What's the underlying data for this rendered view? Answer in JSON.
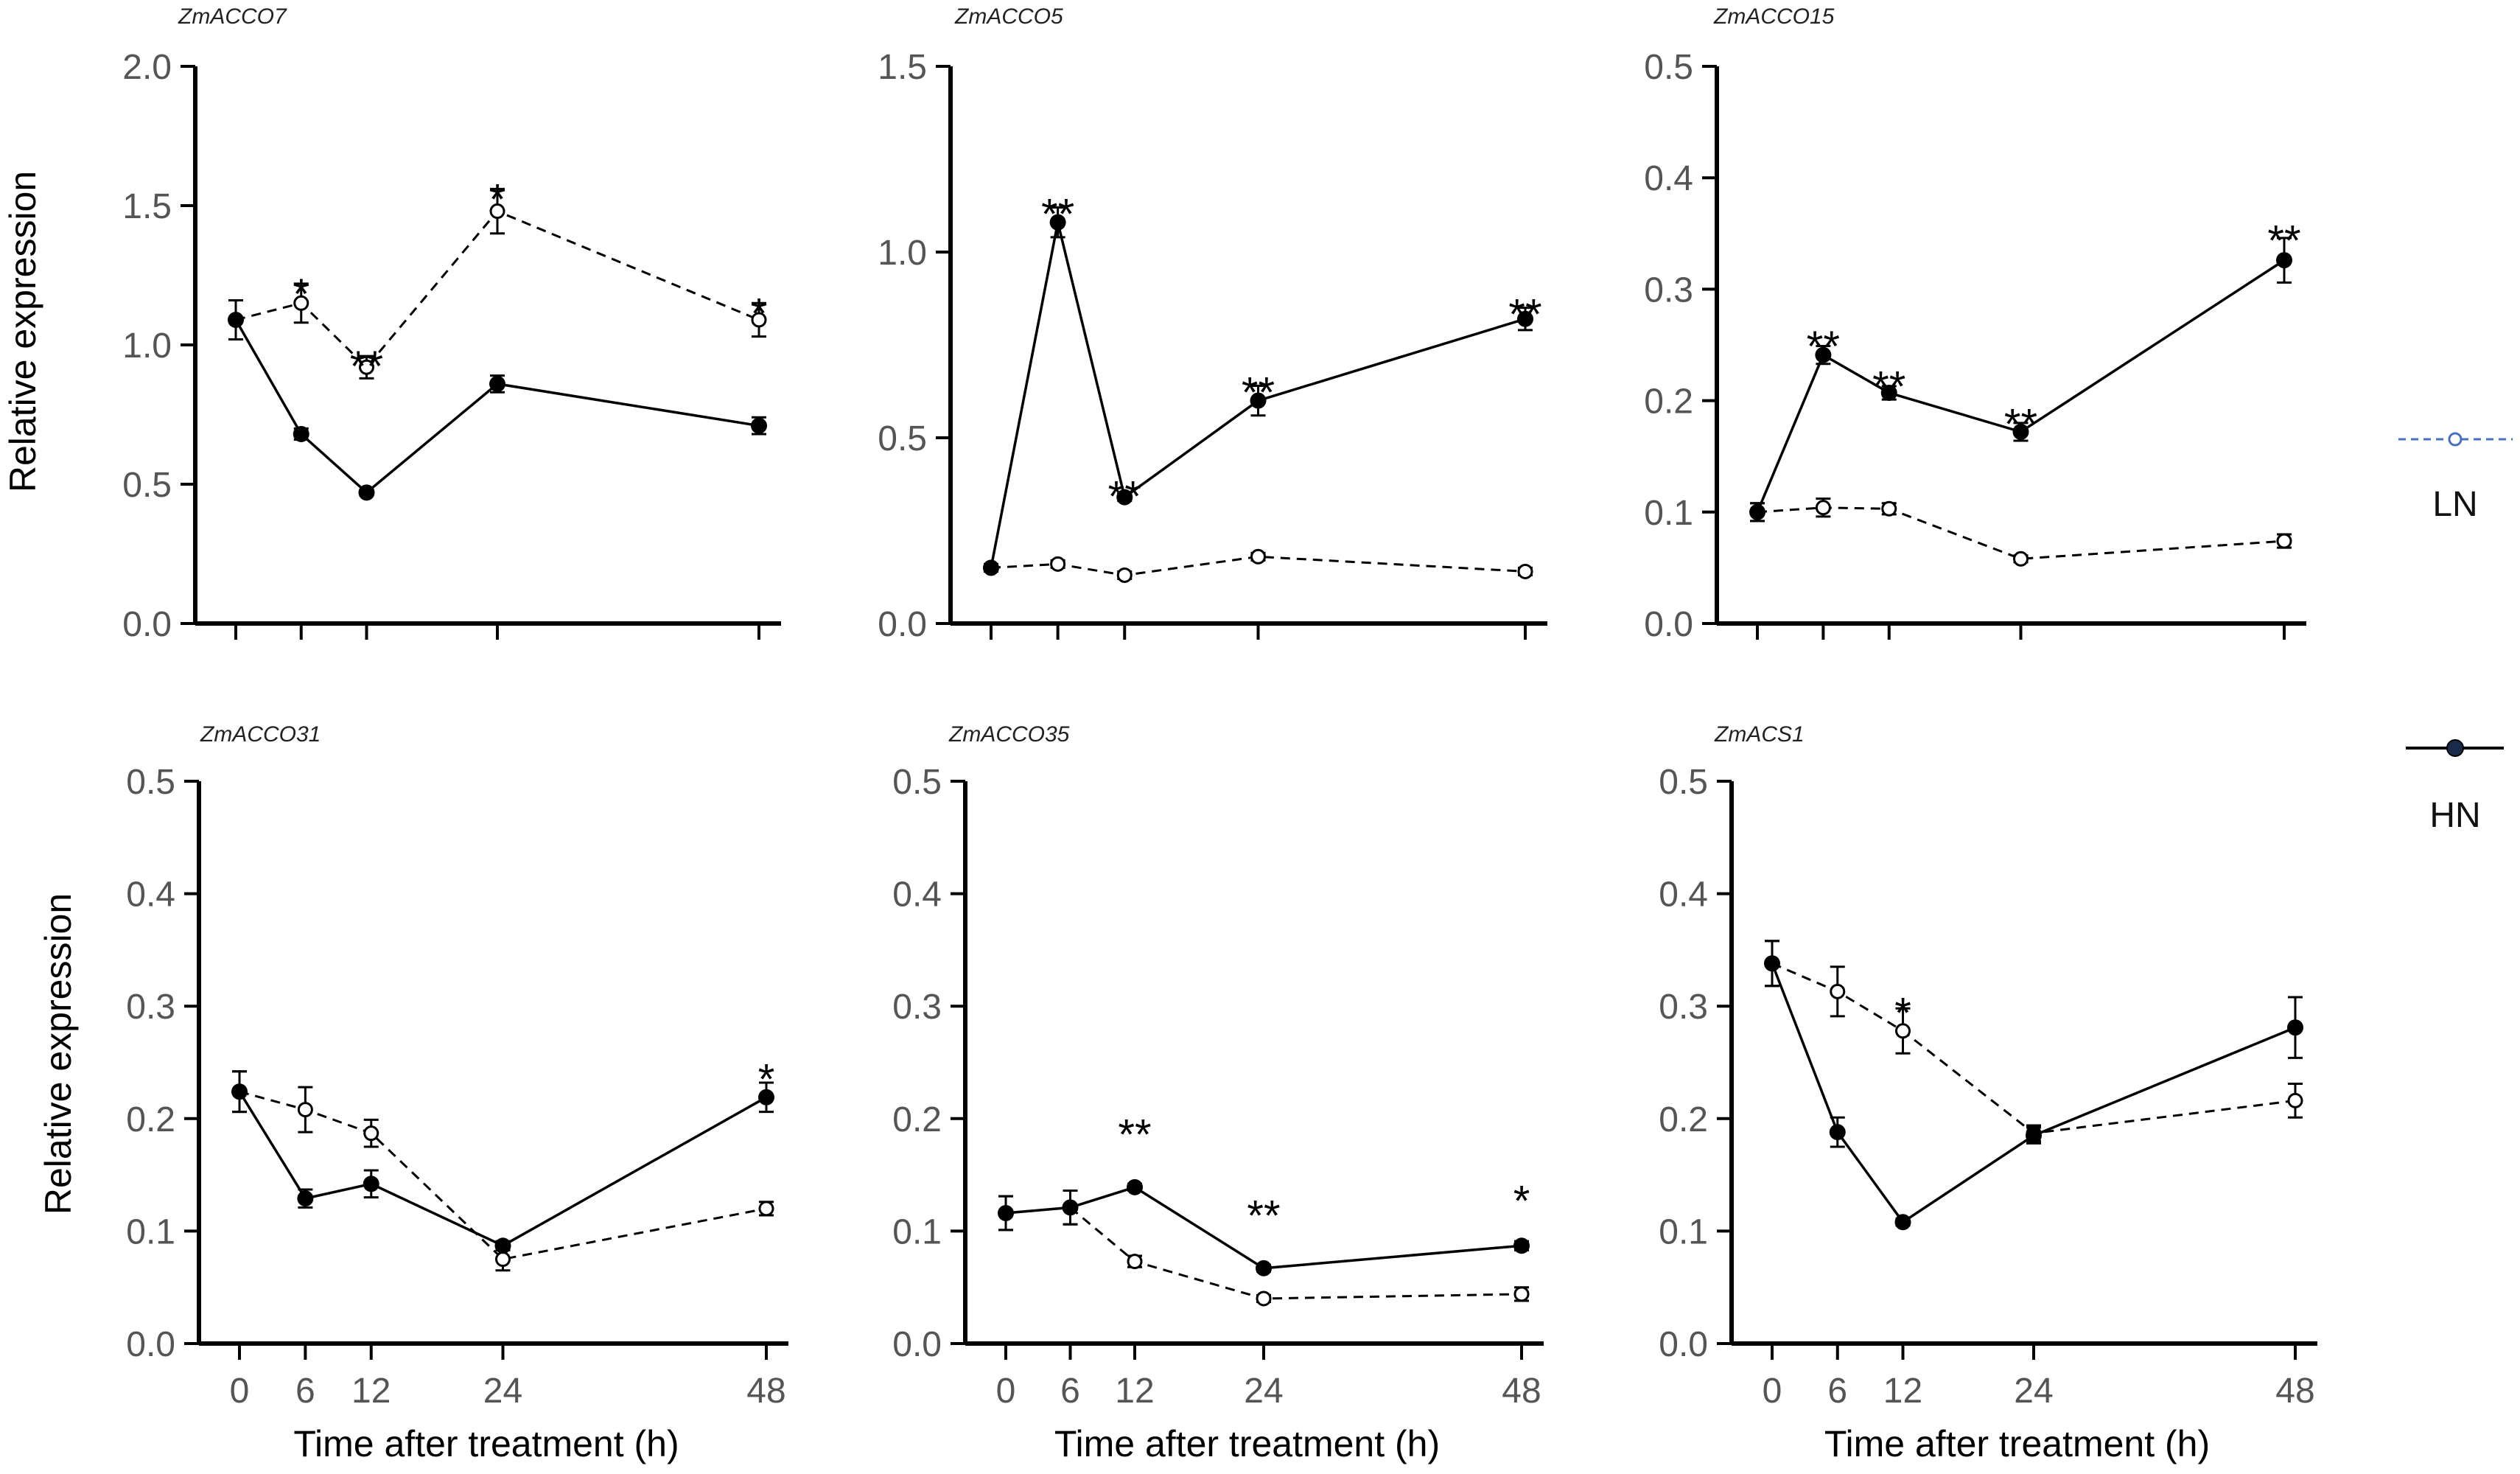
{
  "chart_data": [
    {
      "type": "line",
      "title": "ZmACCO7",
      "ylabel": "Relative  expression",
      "xlabel": "",
      "x": [
        0,
        6,
        12,
        24,
        48
      ],
      "xticks": [],
      "ylim": [
        0,
        2.0
      ],
      "yticks": [
        "0.0",
        "0.5",
        "1.0",
        "1.5",
        "2.0"
      ],
      "series": [
        {
          "name": "LN",
          "style": "dashed-open",
          "values": [
            1.09,
            1.15,
            0.92,
            1.48,
            1.09
          ],
          "errors": [
            0.07,
            0.07,
            0.04,
            0.08,
            0.06
          ]
        },
        {
          "name": "HN",
          "style": "solid-filled",
          "values": [
            1.09,
            0.68,
            0.47,
            0.86,
            0.71
          ],
          "errors": [
            0.07,
            0.02,
            0.01,
            0.03,
            0.03
          ]
        }
      ],
      "annotations": [
        {
          "x": 6,
          "y": 1.22,
          "text": "*"
        },
        {
          "x": 12,
          "y": 0.96,
          "text": "**"
        },
        {
          "x": 24,
          "y": 1.56,
          "text": "*"
        },
        {
          "x": 48,
          "y": 1.15,
          "text": "*"
        }
      ]
    },
    {
      "type": "line",
      "title": "ZmACCO5",
      "ylabel": "",
      "xlabel": "",
      "x": [
        0,
        6,
        12,
        24,
        48
      ],
      "xticks": [],
      "ylim": [
        0,
        1.5
      ],
      "yticks": [
        "0.0",
        "0.5",
        "1.0",
        "1.5"
      ],
      "series": [
        {
          "name": "LN",
          "style": "dashed-open",
          "values": [
            0.15,
            0.16,
            0.13,
            0.18,
            0.14
          ],
          "errors": [
            0.01,
            0.01,
            0.01,
            0.01,
            0.01
          ]
        },
        {
          "name": "HN",
          "style": "solid-filled",
          "values": [
            0.15,
            1.08,
            0.34,
            0.6,
            0.82
          ],
          "errors": [
            0.01,
            0.04,
            0.01,
            0.04,
            0.03
          ]
        }
      ],
      "annotations": [
        {
          "x": 6,
          "y": 1.13,
          "text": "**"
        },
        {
          "x": 12,
          "y": 0.37,
          "text": "**"
        },
        {
          "x": 24,
          "y": 0.65,
          "text": "**"
        },
        {
          "x": 48,
          "y": 0.86,
          "text": "**"
        }
      ]
    },
    {
      "type": "line",
      "title": "ZmACCO15",
      "ylabel": "",
      "xlabel": "",
      "x": [
        0,
        6,
        12,
        24,
        48
      ],
      "xticks": [],
      "ylim": [
        0,
        0.5
      ],
      "yticks": [
        "0.0",
        "0.1",
        "0.2",
        "0.3",
        "0.4",
        "0.5"
      ],
      "series": [
        {
          "name": "LN",
          "style": "dashed-open",
          "values": [
            0.1,
            0.104,
            0.103,
            0.058,
            0.074
          ],
          "errors": [
            0.008,
            0.008,
            0.005,
            0.003,
            0.006
          ]
        },
        {
          "name": "HN",
          "style": "solid-filled",
          "values": [
            0.1,
            0.241,
            0.207,
            0.172,
            0.326
          ],
          "errors": [
            0.008,
            0.008,
            0.006,
            0.008,
            0.02
          ]
        }
      ],
      "annotations": [
        {
          "x": 6,
          "y": 0.258,
          "text": "**"
        },
        {
          "x": 12,
          "y": 0.222,
          "text": "**"
        },
        {
          "x": 24,
          "y": 0.188,
          "text": "**"
        },
        {
          "x": 48,
          "y": 0.353,
          "text": "**"
        }
      ]
    },
    {
      "type": "line",
      "title": "ZmACCO31",
      "ylabel": "Relative  expression",
      "xlabel": "Time after treatment (h)",
      "x": [
        0,
        6,
        12,
        24,
        48
      ],
      "xticks": [
        "0",
        "6",
        "12",
        "24",
        "48"
      ],
      "ylim": [
        0,
        0.5
      ],
      "yticks": [
        "0.0",
        "0.1",
        "0.2",
        "0.3",
        "0.4",
        "0.5"
      ],
      "series": [
        {
          "name": "LN",
          "style": "dashed-open",
          "values": [
            0.224,
            0.208,
            0.187,
            0.075,
            0.12
          ],
          "errors": [
            0.018,
            0.02,
            0.012,
            0.01,
            0.006
          ]
        },
        {
          "name": "HN",
          "style": "solid-filled",
          "values": [
            0.224,
            0.129,
            0.142,
            0.087,
            0.219
          ],
          "errors": [
            0.018,
            0.008,
            0.012,
            0.004,
            0.013
          ]
        }
      ],
      "annotations": [
        {
          "x": 48,
          "y": 0.244,
          "text": "*"
        }
      ]
    },
    {
      "type": "line",
      "title": "ZmACCO35",
      "ylabel": "",
      "xlabel": "Time after treatment (h)",
      "x": [
        0,
        6,
        12,
        24,
        48
      ],
      "xticks": [
        "0",
        "6",
        "12",
        "24",
        "48"
      ],
      "ylim": [
        0,
        0.5
      ],
      "yticks": [
        "0.0",
        "0.1",
        "0.2",
        "0.3",
        "0.4",
        "0.5"
      ],
      "series": [
        {
          "name": "LN",
          "style": "dashed-open",
          "values": [
            0.116,
            0.121,
            0.073,
            0.04,
            0.044
          ],
          "errors": [
            0.015,
            0.015,
            0.005,
            0.003,
            0.006
          ]
        },
        {
          "name": "HN",
          "style": "solid-filled",
          "values": [
            0.116,
            0.121,
            0.139,
            0.067,
            0.087
          ],
          "errors": [
            0.015,
            0.015,
            0.003,
            0.003,
            0.004
          ]
        }
      ],
      "annotations": [
        {
          "x": 12,
          "y": 0.195,
          "text": "**"
        },
        {
          "x": 24,
          "y": 0.123,
          "text": "**"
        },
        {
          "x": 48,
          "y": 0.136,
          "text": "*"
        }
      ]
    },
    {
      "type": "line",
      "title": "ZmACS1",
      "ylabel": "",
      "xlabel": "Time after treatment (h)",
      "x": [
        0,
        6,
        12,
        24,
        48
      ],
      "xticks": [
        "0",
        "6",
        "12",
        "24",
        "48"
      ],
      "ylim": [
        0,
        0.5
      ],
      "yticks": [
        "0.0",
        "0.1",
        "0.2",
        "0.3",
        "0.4",
        "0.5"
      ],
      "series": [
        {
          "name": "LN",
          "style": "dashed-open",
          "values": [
            0.338,
            0.313,
            0.278,
            0.187,
            0.216
          ],
          "errors": [
            0.02,
            0.022,
            0.02,
            0.007,
            0.015
          ]
        },
        {
          "name": "HN",
          "style": "solid-filled",
          "values": [
            0.338,
            0.188,
            0.108,
            0.185,
            0.281
          ],
          "errors": [
            0.02,
            0.013,
            0.003,
            0.007,
            0.027
          ]
        }
      ],
      "annotations": [
        {
          "x": 12,
          "y": 0.303,
          "text": "*"
        }
      ]
    }
  ],
  "legend": [
    {
      "label": "LN",
      "line": "dashed",
      "color": "#4a6fc0",
      "marker": "open"
    },
    {
      "label": "HN",
      "line": "solid",
      "color": "#000000",
      "marker": "filled",
      "marker_color": "#1a2a4a"
    }
  ],
  "colors": {
    "axis": "#000000",
    "series": "#000000",
    "tick_text": "#555555"
  }
}
